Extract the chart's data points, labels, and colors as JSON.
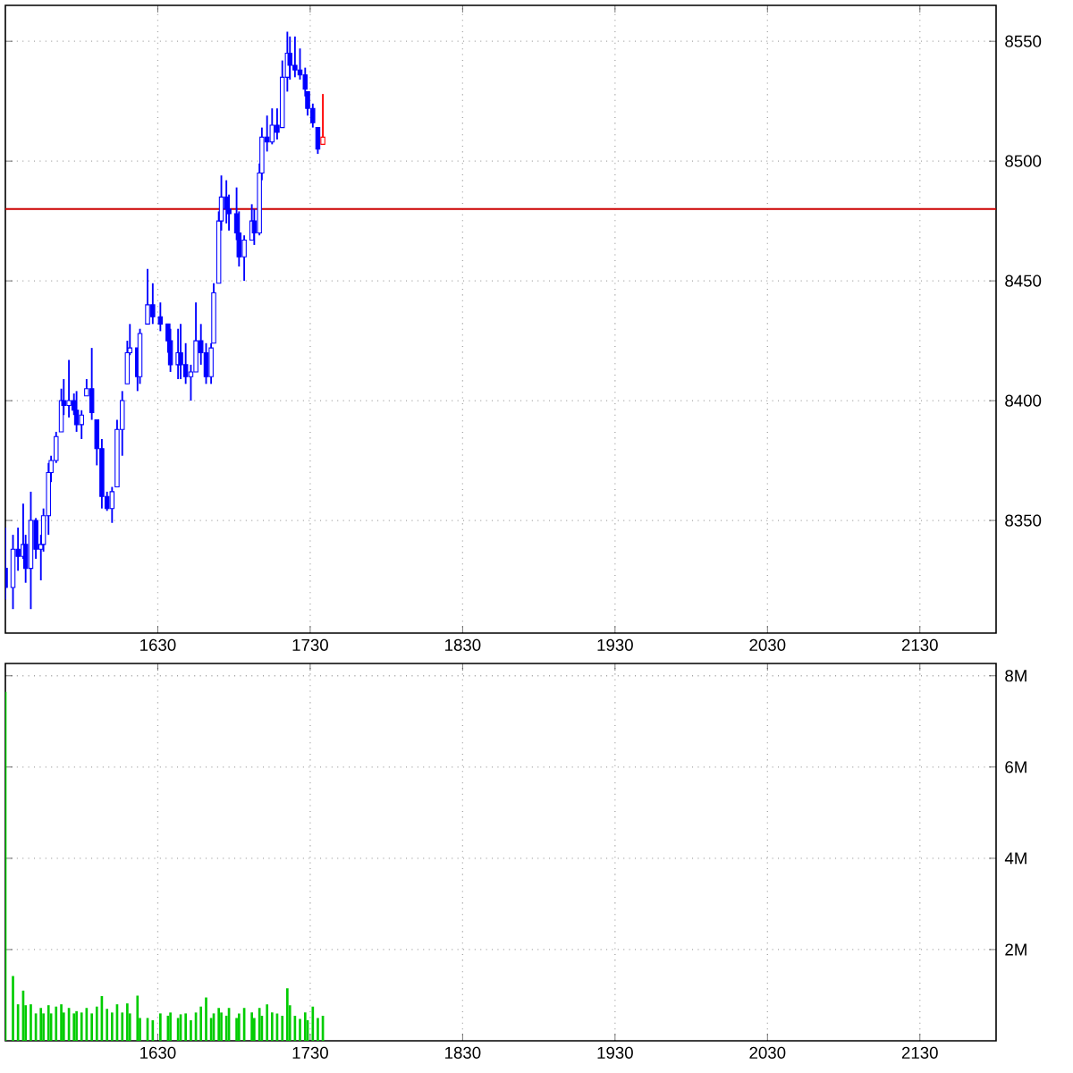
{
  "chart_data": [
    {
      "type": "candlestick",
      "x": [
        1530,
        1535,
        1538.3,
        1541.7,
        1543.3,
        1546.7,
        1550,
        1553.3,
        1555,
        1558.3,
        1560,
        1563.3,
        1566.7,
        1568.3,
        1571.7,
        1575,
        1576.7,
        1580,
        1583.3,
        1586.7,
        1590,
        1593.3,
        1596.7,
        1600,
        1603.3,
        1606.7,
        1610,
        1611.7,
        1616.7,
        1618.3,
        1623.3,
        1626.7,
        1631.7,
        1636.7,
        1638.3,
        1643.3,
        1645,
        1648.3,
        1651.7,
        1655,
        1658.3,
        1661.7,
        1665,
        1666.7,
        1670,
        1671.7,
        1675,
        1676.7,
        1681.7,
        1683.3,
        1686.7,
        1691.7,
        1693.3,
        1696.7,
        1698.3,
        1701.7,
        1705,
        1708.3,
        1711.7,
        1715,
        1716.7,
        1720,
        1723.3,
        1726.7,
        1728.3,
        1731.7,
        1735,
        1738.3
      ],
      "ohlc": [
        [
          8330,
          8347,
          8317,
          8322
        ],
        [
          8322,
          8344,
          8313,
          8338
        ],
        [
          8338,
          8347,
          8329,
          8335
        ],
        [
          8335,
          8357,
          8334,
          8340
        ],
        [
          8340,
          8344,
          8324,
          8330
        ],
        [
          8330,
          8362,
          8313,
          8350
        ],
        [
          8350,
          8351,
          8334,
          8338
        ],
        [
          8338,
          8344,
          8325,
          8340
        ],
        [
          8340,
          8355,
          8337,
          8352
        ],
        [
          8352,
          8374,
          8344,
          8370
        ],
        [
          8370,
          8377,
          8366,
          8375
        ],
        [
          8375,
          8387,
          8374,
          8385
        ],
        [
          8387,
          8405,
          8387,
          8400
        ],
        [
          8400,
          8409,
          8394,
          8398
        ],
        [
          8398,
          8417,
          8393,
          8400
        ],
        [
          8400,
          8403,
          8394,
          8396
        ],
        [
          8396,
          8404,
          8387,
          8390
        ],
        [
          8390,
          8396,
          8384,
          8394
        ],
        [
          8402,
          8409,
          8402,
          8405
        ],
        [
          8405,
          8422,
          8392,
          8395
        ],
        [
          8392,
          8392,
          8373,
          8380
        ],
        [
          8380,
          8384,
          8355,
          8360
        ],
        [
          8360,
          8362,
          8354,
          8355
        ],
        [
          8355,
          8364,
          8349,
          8362
        ],
        [
          8364,
          8392,
          8364,
          8388
        ],
        [
          8388,
          8404,
          8377,
          8400
        ],
        [
          8407,
          8425,
          8407,
          8420
        ],
        [
          8420,
          8432,
          8419,
          8422
        ],
        [
          8422,
          8422,
          8404,
          8410
        ],
        [
          8410,
          8430,
          8407,
          8428
        ],
        [
          8432,
          8455,
          8432,
          8440
        ],
        [
          8440,
          8449,
          8432,
          8435
        ],
        [
          8435,
          8441,
          8429,
          8432
        ],
        [
          8432,
          8432,
          8420,
          8425
        ],
        [
          8425,
          8430,
          8412,
          8415
        ],
        [
          8415,
          8430,
          8409,
          8420
        ],
        [
          8420,
          8432,
          8409,
          8415
        ],
        [
          8415,
          8424,
          8407,
          8410
        ],
        [
          8410,
          8415,
          8400,
          8412
        ],
        [
          8412,
          8441,
          8412,
          8425
        ],
        [
          8425,
          8432,
          8415,
          8420
        ],
        [
          8420,
          8424,
          8407,
          8410
        ],
        [
          8410,
          8424,
          8407,
          8422
        ],
        [
          8424,
          8449,
          8424,
          8445
        ],
        [
          8449,
          8479,
          8449,
          8475
        ],
        [
          8475,
          8494,
          8471,
          8485
        ],
        [
          8485,
          8492,
          8474,
          8480
        ],
        [
          8480,
          8486,
          8471,
          8478
        ],
        [
          8478,
          8489,
          8467,
          8470
        ],
        [
          8470,
          8479,
          8456,
          8460
        ],
        [
          8460,
          8469,
          8450,
          8467
        ],
        [
          8467,
          8482,
          8467,
          8475
        ],
        [
          8475,
          8480,
          8465,
          8470
        ],
        [
          8470,
          8499,
          8469,
          8495
        ],
        [
          8495,
          8514,
          8492,
          8510
        ],
        [
          8510,
          8519,
          8504,
          8508
        ],
        [
          8508,
          8522,
          8507,
          8515
        ],
        [
          8515,
          8522,
          8509,
          8512
        ],
        [
          8514,
          8542,
          8514,
          8535
        ],
        [
          8535,
          8554,
          8529,
          8545
        ],
        [
          8545,
          8552,
          8534,
          8540
        ],
        [
          8540,
          8552,
          8535,
          8538
        ],
        [
          8538,
          8547,
          8534,
          8536
        ],
        [
          8536,
          8539,
          8527,
          8530
        ],
        [
          8529,
          8529,
          8519,
          8522
        ],
        [
          8522,
          8524,
          8514,
          8516
        ],
        [
          8514,
          8514,
          8503,
          8505
        ],
        [
          8507,
          8528,
          8507,
          8510
        ]
      ],
      "colors": [
        "#0000ff",
        "#0000ff",
        "#0000ff",
        "#0000ff",
        "#0000ff",
        "#0000ff",
        "#0000ff",
        "#0000ff",
        "#0000ff",
        "#0000ff",
        "#0000ff",
        "#0000ff",
        "#0000ff",
        "#0000ff",
        "#0000ff",
        "#0000ff",
        "#0000ff",
        "#0000ff",
        "#0000ff",
        "#0000ff",
        "#0000ff",
        "#0000ff",
        "#0000ff",
        "#0000ff",
        "#0000ff",
        "#0000ff",
        "#0000ff",
        "#0000ff",
        "#0000ff",
        "#0000ff",
        "#0000ff",
        "#0000ff",
        "#0000ff",
        "#0000ff",
        "#0000ff",
        "#0000ff",
        "#0000ff",
        "#0000ff",
        "#0000ff",
        "#0000ff",
        "#0000ff",
        "#0000ff",
        "#0000ff",
        "#0000ff",
        "#0000ff",
        "#0000ff",
        "#0000ff",
        "#0000ff",
        "#0000ff",
        "#0000ff",
        "#0000ff",
        "#0000ff",
        "#0000ff",
        "#0000ff",
        "#0000ff",
        "#0000ff",
        "#0000ff",
        "#0000ff",
        "#0000ff",
        "#0000ff",
        "#0000ff",
        "#0000ff",
        "#0000ff",
        "#0000ff",
        "#0000ff",
        "#0000ff",
        "#0000ff",
        "#ff0000"
      ],
      "xlim": [
        1530,
        2180
      ],
      "ylim": [
        8303,
        8565
      ],
      "xticks": [
        1630,
        1730,
        1830,
        1930,
        2030,
        2130
      ],
      "yticks": [
        8350,
        8400,
        8450,
        8500,
        8550
      ],
      "grid": true,
      "ref_lines": [
        {
          "axis": "y",
          "value": 8480,
          "color": "#cc0000"
        }
      ]
    },
    {
      "type": "bar",
      "x": [
        1530,
        1535,
        1538.3,
        1541.7,
        1543.3,
        1546.7,
        1550,
        1553.3,
        1555,
        1558.3,
        1560,
        1563.3,
        1566.7,
        1568.3,
        1571.7,
        1575,
        1576.7,
        1580,
        1583.3,
        1586.7,
        1590,
        1593.3,
        1596.7,
        1600,
        1603.3,
        1606.7,
        1610,
        1611.7,
        1616.7,
        1618.3,
        1623.3,
        1626.7,
        1631.7,
        1636.7,
        1638.3,
        1643.3,
        1645,
        1648.3,
        1651.7,
        1655,
        1658.3,
        1661.7,
        1665,
        1666.7,
        1670,
        1671.7,
        1675,
        1676.7,
        1681.7,
        1683.3,
        1686.7,
        1691.7,
        1693.3,
        1696.7,
        1698.3,
        1701.7,
        1705,
        1708.3,
        1711.7,
        1715,
        1716.7,
        1720,
        1723.3,
        1726.7,
        1728.3,
        1731.7,
        1735,
        1738.3
      ],
      "values": [
        7.65,
        1.42,
        0.8,
        1.1,
        0.78,
        0.8,
        0.6,
        0.72,
        0.6,
        0.78,
        0.6,
        0.75,
        0.8,
        0.62,
        0.72,
        0.6,
        0.65,
        0.62,
        0.72,
        0.6,
        0.75,
        0.98,
        0.7,
        0.62,
        0.8,
        0.62,
        0.82,
        0.6,
        0.99,
        0.5,
        0.5,
        0.45,
        0.6,
        0.55,
        0.62,
        0.5,
        0.58,
        0.6,
        0.45,
        0.62,
        0.75,
        0.95,
        0.5,
        0.6,
        0.72,
        0.62,
        0.55,
        0.72,
        0.5,
        0.6,
        0.72,
        0.62,
        0.5,
        0.72,
        0.55,
        0.8,
        0.62,
        0.6,
        0.55,
        1.15,
        0.78,
        0.55,
        0.48,
        0.62,
        0.45,
        0.75,
        0.5,
        0.55
      ],
      "color": "#00cc00",
      "xlim": [
        1530,
        2180
      ],
      "ylim": [
        0,
        8.27
      ],
      "xticks": [
        1630,
        1730,
        1830,
        1930,
        2030,
        2130
      ],
      "yticks": [
        {
          "value": 2,
          "label": "2M"
        },
        {
          "value": 4,
          "label": "4M"
        },
        {
          "value": 6,
          "label": "6M"
        },
        {
          "value": 8,
          "label": "8M"
        }
      ],
      "grid": true
    }
  ]
}
